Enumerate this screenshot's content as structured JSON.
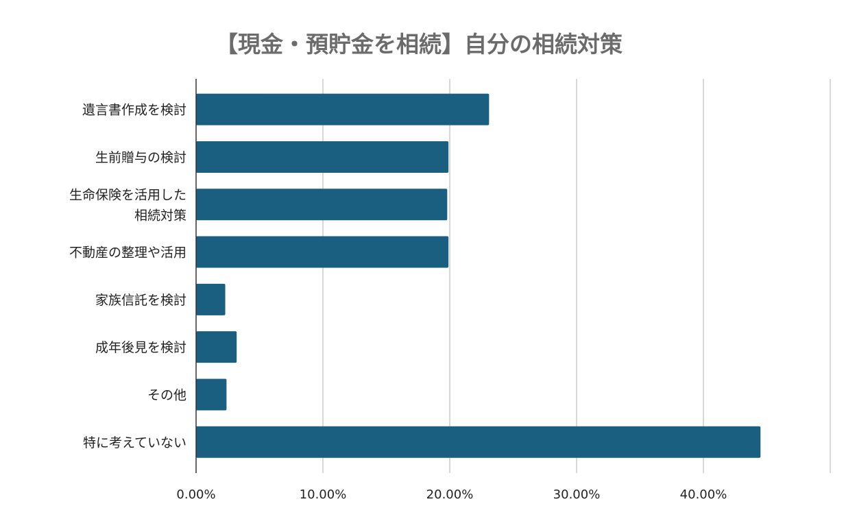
{
  "chart_data": {
    "type": "bar",
    "orientation": "horizontal",
    "title": "【現金・預貯金を相続】自分の相続対策",
    "categories": [
      "遺言書作成を検討",
      "生前贈与の検討",
      "生命保険を活用した\n相続対策",
      "不動産の整理や活用",
      "家族信託を検討",
      "成年後見を検討",
      "その他",
      "特に考えていない"
    ],
    "values": [
      23.1,
      19.9,
      19.8,
      19.9,
      2.3,
      3.2,
      2.4,
      44.5
    ],
    "xlabel": "",
    "ylabel": "",
    "xlim": [
      0,
      50
    ],
    "xticks": [
      0,
      10,
      20,
      30,
      40
    ],
    "xtick_labels": [
      "0.00%",
      "10.00%",
      "20.00%",
      "30.00%",
      "40.00%"
    ],
    "grid": true,
    "legend": "none",
    "colors": {
      "bar": "#1a5f80",
      "grid": "#cccccc",
      "axis": "#333333",
      "title": "#6b6b6b"
    }
  }
}
